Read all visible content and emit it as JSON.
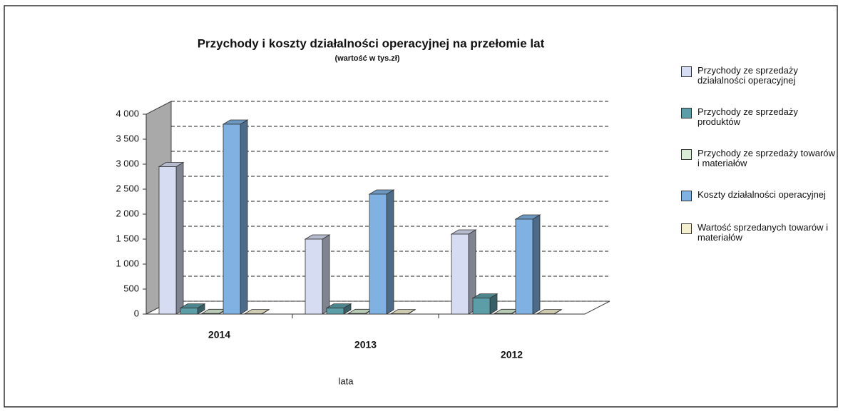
{
  "chart_data": {
    "type": "bar3d",
    "title": "Przychody i koszty działalności operacyjnej na przełomie lat",
    "subtitle": "(wartość w tys.zł)",
    "x_label": "lata",
    "categories": [
      "2014",
      "2013",
      "2012"
    ],
    "series": [
      {
        "name": "Przychody ze sprzedaży działalności operacyjnej",
        "color": "#d6dcf2",
        "values": [
          2950,
          1500,
          1600
        ]
      },
      {
        "name": "Przychody ze sprzedaży produktów",
        "color": "#5c9ea8",
        "values": [
          120,
          120,
          320
        ]
      },
      {
        "name": "Przychody ze sprzedaży towarów i materiałów",
        "color": "#d9ecd6",
        "values": [
          10,
          10,
          10
        ]
      },
      {
        "name": "Koszty działalności operacyjnej",
        "color": "#7fb2e2",
        "values": [
          3800,
          2400,
          1900
        ]
      },
      {
        "name": "Wartość sprzedanych towarów i materiałów",
        "color": "#f3efcf",
        "values": [
          5,
          5,
          5
        ]
      }
    ],
    "ylim": [
      0,
      4000
    ],
    "yticks": [
      0,
      500,
      {
        "value": 1000,
        "label": "1 000"
      },
      {
        "value": 1500,
        "label": "1 500"
      },
      {
        "value": 2000,
        "label": "2 000"
      },
      {
        "value": 2500,
        "label": "2 500"
      },
      {
        "value": 3000,
        "label": "3 000"
      },
      {
        "value": 3500,
        "label": "3 500"
      },
      {
        "value": 4000,
        "label": "4 000"
      }
    ],
    "grid": true
  }
}
